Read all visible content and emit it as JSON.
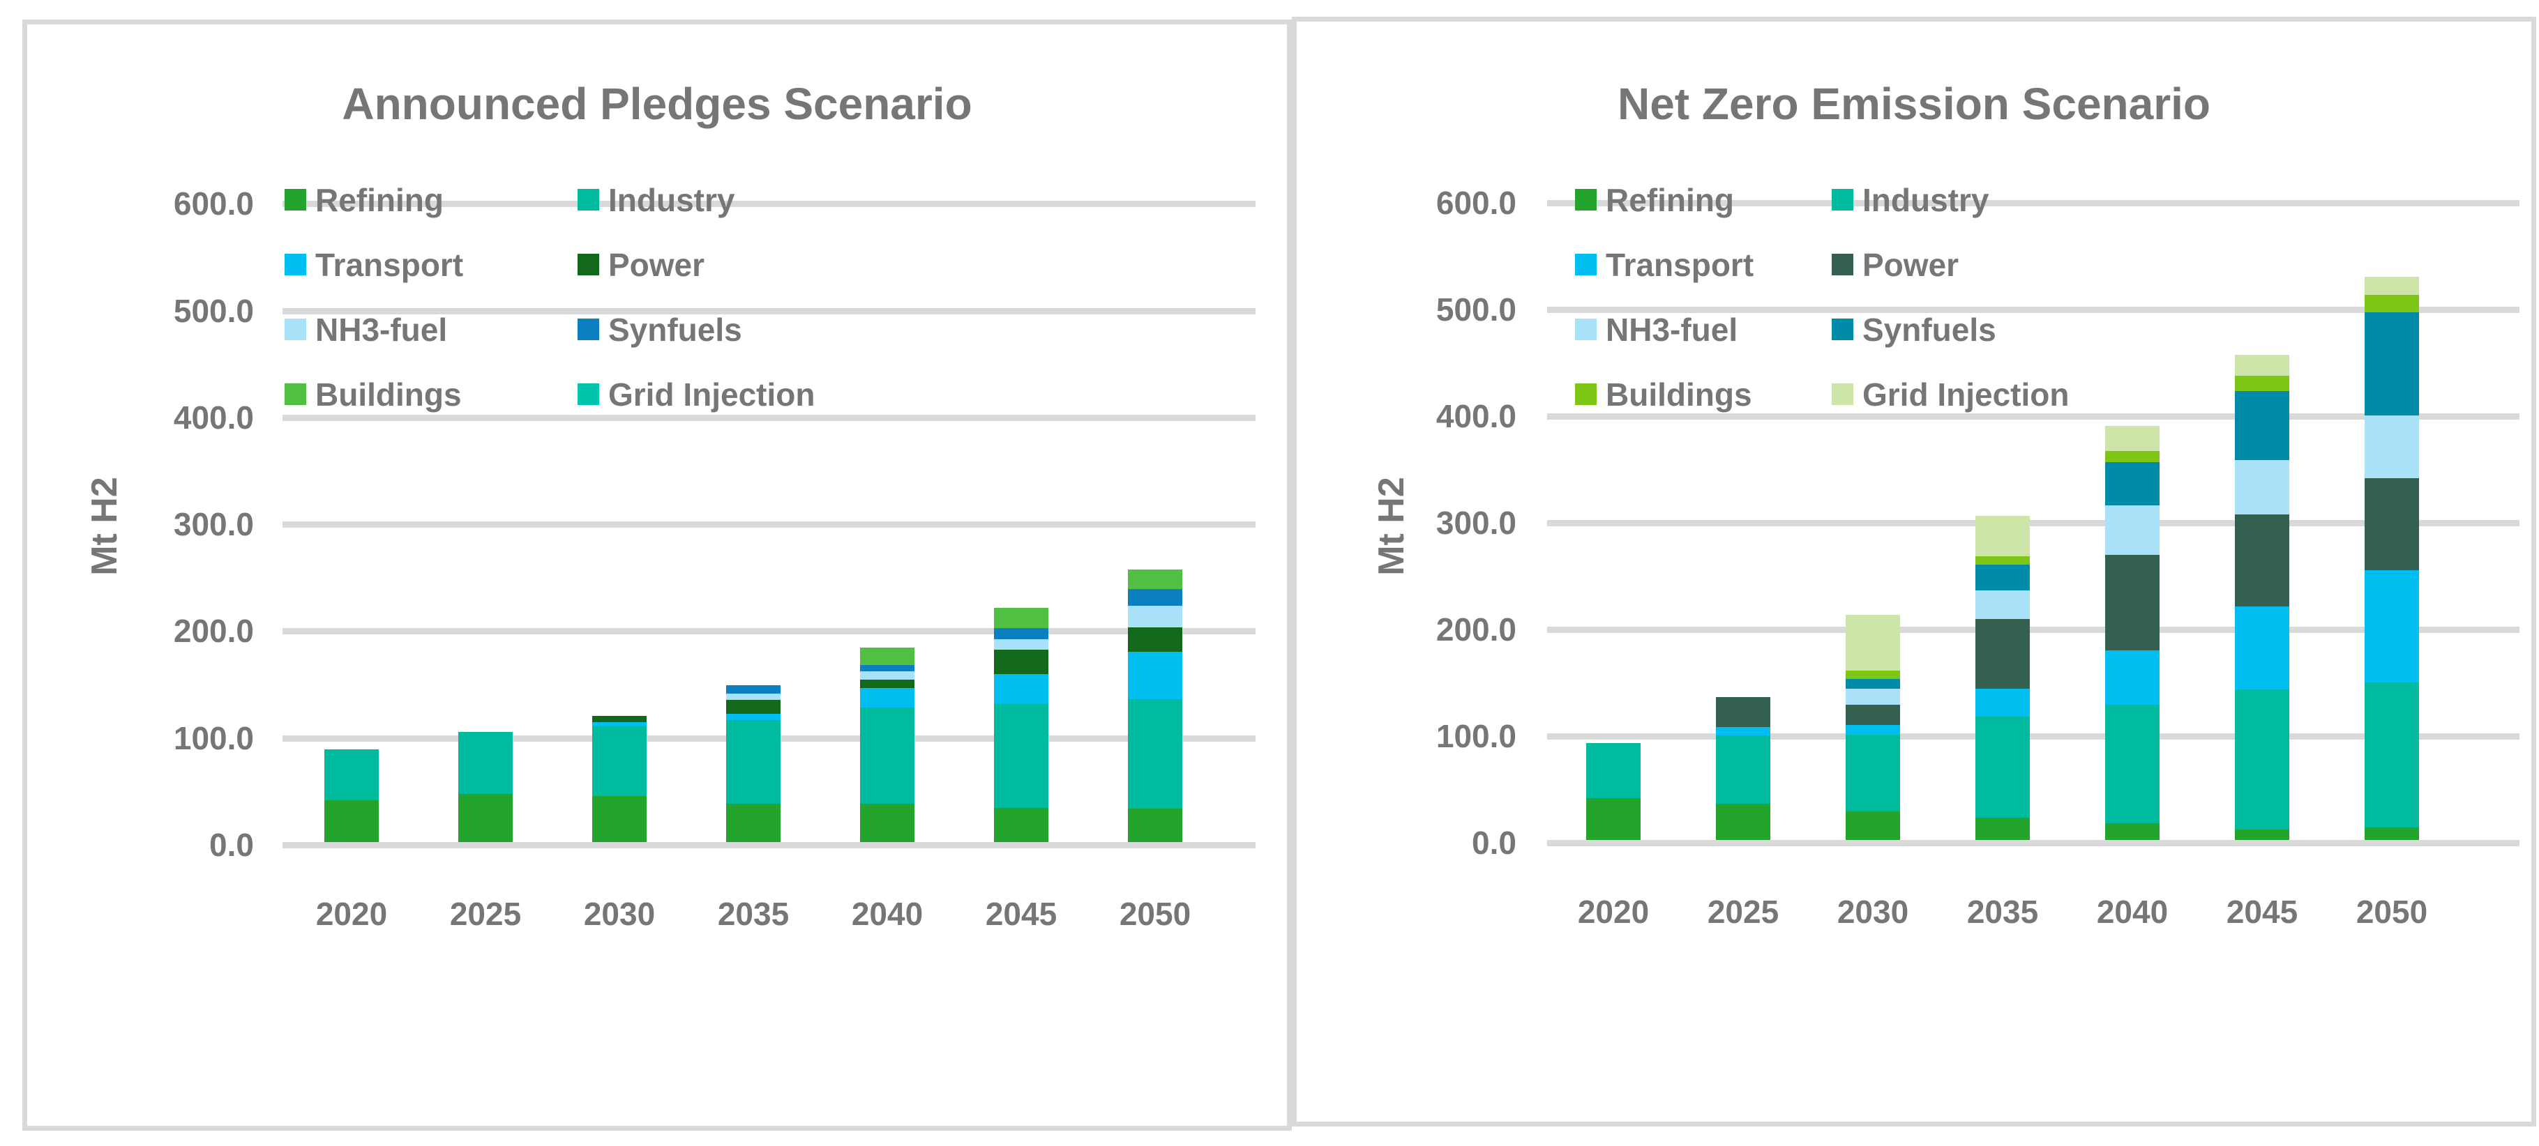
{
  "chart_data": [
    {
      "type": "bar",
      "stacked": true,
      "title": "Announced Pledges Scenario",
      "ylabel": "Mt H2",
      "xlabel": "",
      "ylim": [
        0,
        600
      ],
      "grid": true,
      "legend_position": "top-left-two-columns",
      "yticks": [
        "600.0",
        "500.0",
        "400.0",
        "300.0",
        "200.0",
        "100.0",
        "0.0"
      ],
      "categories": [
        "2020",
        "2025",
        "2030",
        "2035",
        "2040",
        "2045",
        "2050"
      ],
      "series": [
        {
          "name": "Refining",
          "color": "#23A42D",
          "values": [
            39,
            45,
            43,
            36,
            36,
            32,
            31
          ]
        },
        {
          "name": "Industry",
          "color": "#00BA9D",
          "values": [
            48,
            58,
            65,
            78,
            90,
            97,
            103
          ]
        },
        {
          "name": "Transport",
          "color": "#00BFF0",
          "values": [
            0,
            0,
            4,
            6,
            18,
            28,
            44
          ]
        },
        {
          "name": "Power",
          "color": "#13691B",
          "values": [
            0,
            0,
            6,
            13,
            8,
            23,
            23
          ]
        },
        {
          "name": "NH3-fuel",
          "color": "#A9E1F8",
          "values": [
            0,
            0,
            0,
            6,
            8,
            10,
            20
          ]
        },
        {
          "name": "Synfuels",
          "color": "#0B7FC0",
          "values": [
            0,
            0,
            0,
            8,
            6,
            10,
            16
          ]
        },
        {
          "name": "Buildings",
          "color": "#52C143",
          "values": [
            0,
            0,
            0,
            0,
            16,
            19,
            18
          ]
        },
        {
          "name": "Grid Injection",
          "color": "#00C5AC",
          "values": [
            0,
            0,
            0,
            0,
            0,
            0,
            0
          ]
        }
      ]
    },
    {
      "type": "bar",
      "stacked": true,
      "title": "Net Zero Emission Scenario",
      "ylabel": "Mt H2",
      "xlabel": "",
      "ylim": [
        0,
        600
      ],
      "grid": true,
      "legend_position": "top-left-two-columns",
      "yticks": [
        "600.0",
        "500.0",
        "400.0",
        "300.0",
        "200.0",
        "100.0",
        "0.0"
      ],
      "categories": [
        "2020",
        "2025",
        "2030",
        "2035",
        "2040",
        "2045",
        "2050"
      ],
      "series": [
        {
          "name": "Refining",
          "color": "#23A42D",
          "values": [
            39,
            34,
            27,
            21,
            16,
            10,
            12
          ]
        },
        {
          "name": "Industry",
          "color": "#00BA9D",
          "values": [
            52,
            64,
            72,
            95,
            111,
            131,
            136
          ]
        },
        {
          "name": "Transport",
          "color": "#00BFF0",
          "values": [
            0,
            8,
            9,
            26,
            51,
            78,
            105
          ]
        },
        {
          "name": "Power",
          "color": "#34614F",
          "values": [
            0,
            28,
            19,
            65,
            89,
            86,
            86
          ]
        },
        {
          "name": "NH3-fuel",
          "color": "#A9E1F8",
          "values": [
            0,
            0,
            15,
            27,
            47,
            51,
            59
          ]
        },
        {
          "name": "Synfuels",
          "color": "#008CA8",
          "values": [
            0,
            0,
            9,
            24,
            40,
            65,
            97
          ]
        },
        {
          "name": "Buildings",
          "color": "#7DC616",
          "values": [
            0,
            0,
            8,
            8,
            11,
            14,
            16
          ]
        },
        {
          "name": "Grid Injection",
          "color": "#CDE5A8",
          "values": [
            0,
            0,
            52,
            38,
            23,
            20,
            17
          ]
        }
      ]
    }
  ]
}
